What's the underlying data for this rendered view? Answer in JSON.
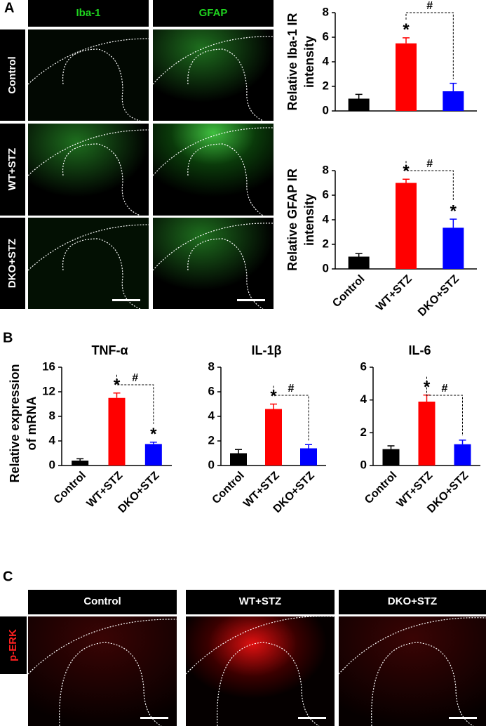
{
  "panel_labels": [
    "A",
    "B",
    "C"
  ],
  "panel_a": {
    "headers": [
      "Iba-1",
      "GFAP"
    ],
    "rows": [
      "Control",
      "WT+STZ",
      "DKO+STZ"
    ]
  },
  "panel_c": {
    "headers": [
      "Control",
      "WT+STZ",
      "DKO+STZ"
    ],
    "row": "p-ERK"
  },
  "chart_data": [
    {
      "type": "bar",
      "y_label": [
        "Relative Iba-1 IR",
        "intensity"
      ],
      "categories": [
        null,
        null,
        null
      ],
      "values": [
        1,
        5.5,
        1.6
      ],
      "errors": [
        0.35,
        0.45,
        0.65
      ],
      "colors": [
        "#000000",
        "#ff0000",
        "#0000ff"
      ],
      "ylim": [
        0,
        8
      ],
      "yticks": [
        0,
        2,
        4,
        6,
        8
      ],
      "annotations": [
        {
          "text": "*",
          "at": 1
        }
      ],
      "bracket": {
        "text": "#",
        "from": 1,
        "to": 2
      }
    },
    {
      "type": "bar",
      "y_label": [
        "Relative GFAP IR",
        "intensity"
      ],
      "categories": [
        "Control",
        "WT+STZ",
        "DKO+STZ"
      ],
      "values": [
        1,
        7,
        3.35
      ],
      "errors": [
        0.25,
        0.3,
        0.7
      ],
      "colors": [
        "#000000",
        "#ff0000",
        "#0000ff"
      ],
      "ylim": [
        0,
        8
      ],
      "yticks": [
        0,
        2,
        4,
        6,
        8
      ],
      "annotations": [
        {
          "text": "*",
          "at": 1
        },
        {
          "text": "*",
          "at": 2
        }
      ],
      "bracket": {
        "text": "#",
        "from": 1,
        "to": 2
      }
    },
    {
      "type": "bar",
      "title": "TNF-α",
      "y_label": [
        "Relative expression",
        "of mRNA"
      ],
      "categories": [
        "Control",
        "WT+STZ",
        "DKO+STZ"
      ],
      "values": [
        0.8,
        11,
        3.5
      ],
      "errors": [
        0.3,
        0.8,
        0.3
      ],
      "colors": [
        "#000000",
        "#ff0000",
        "#0000ff"
      ],
      "ylim": [
        0,
        16
      ],
      "yticks": [
        0,
        4,
        8,
        12,
        16
      ],
      "annotations": [
        {
          "text": "*",
          "at": 1
        },
        {
          "text": "*",
          "at": 2
        }
      ],
      "bracket": {
        "text": "#",
        "from": 1,
        "to": 2
      }
    },
    {
      "type": "bar",
      "title": "IL-1β",
      "categories": [
        "Control",
        "WT+STZ",
        "DKO+STZ"
      ],
      "values": [
        1,
        4.6,
        1.4
      ],
      "errors": [
        0.3,
        0.4,
        0.3
      ],
      "colors": [
        "#000000",
        "#ff0000",
        "#0000ff"
      ],
      "ylim": [
        0,
        8
      ],
      "yticks": [
        0,
        2,
        4,
        6,
        8
      ],
      "annotations": [
        {
          "text": "*",
          "at": 1
        }
      ],
      "bracket": {
        "text": "#",
        "from": 1,
        "to": 2
      }
    },
    {
      "type": "bar",
      "title": "IL-6",
      "categories": [
        "Control",
        "WT+STZ",
        "DKO+STZ"
      ],
      "values": [
        1,
        3.9,
        1.3
      ],
      "errors": [
        0.2,
        0.4,
        0.25
      ],
      "colors": [
        "#000000",
        "#ff0000",
        "#0000ff"
      ],
      "ylim": [
        0,
        6
      ],
      "yticks": [
        0,
        2,
        4,
        6
      ],
      "annotations": [
        {
          "text": "*",
          "at": 1
        }
      ],
      "bracket": {
        "text": "#",
        "from": 1,
        "to": 2
      }
    }
  ]
}
